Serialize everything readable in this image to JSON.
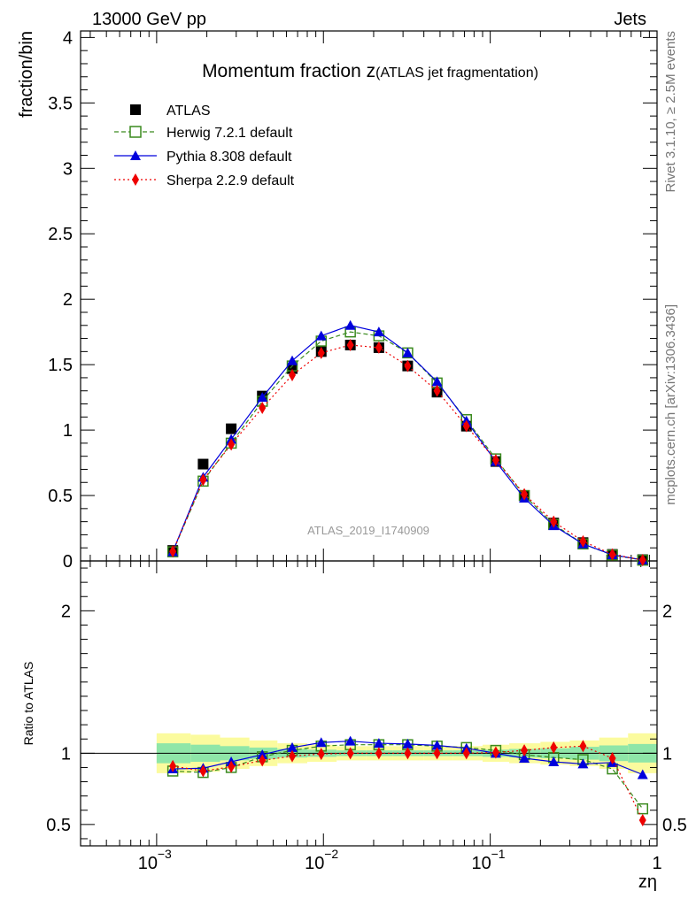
{
  "header": {
    "left": "13000 GeV pp",
    "right": "Jets"
  },
  "side_labels": {
    "rivet": "Rivet 3.1.10, ≥ 2.5M events",
    "mcplots": "mcplots.cern.ch [arXiv:1306.3436]"
  },
  "watermark": "ATLAS_2019_I1740909",
  "chart_data": [
    {
      "type": "scatter",
      "panel": "main",
      "title_main": "Momentum fraction z",
      "title_sub": "(ATLAS jet fragmentation)",
      "ylabel": "fraction/bin",
      "xlabel": "zη",
      "xscale": "log",
      "xlim": [
        0.00035,
        1.0
      ],
      "ylim": [
        0,
        4.05
      ],
      "ytick_labels": [
        "0",
        "0.5",
        "1",
        "1.5",
        "2",
        "2.5",
        "3",
        "3.5",
        "4"
      ],
      "x": [
        0.00125,
        0.0019,
        0.0028,
        0.0043,
        0.0065,
        0.0097,
        0.0145,
        0.0215,
        0.032,
        0.048,
        0.072,
        0.108,
        0.16,
        0.24,
        0.36,
        0.54,
        0.82
      ],
      "legend": "top-left",
      "series": [
        {
          "name": "ATLAS",
          "marker": "square-filled",
          "color": "#000000",
          "dash": "none",
          "values": [
            0.08,
            0.74,
            1.01,
            1.26,
            1.47,
            1.6,
            1.65,
            1.63,
            1.49,
            1.29,
            1.03,
            0.76,
            0.5,
            0.29,
            0.14,
            0.05,
            0.01
          ]
        },
        {
          "name": "Herwig 7.2.1 default",
          "marker": "square-open",
          "color": "#3a8a1e",
          "dash": "5,3",
          "values": [
            0.07,
            0.61,
            0.9,
            1.22,
            1.49,
            1.68,
            1.75,
            1.72,
            1.59,
            1.36,
            1.08,
            0.78,
            0.5,
            0.28,
            0.13,
            0.045,
            0.006
          ]
        },
        {
          "name": "Pythia 8.308 default",
          "marker": "triangle",
          "color": "#0000dd",
          "dash": "none",
          "values": [
            0.07,
            0.64,
            0.93,
            1.25,
            1.53,
            1.72,
            1.8,
            1.75,
            1.59,
            1.37,
            1.07,
            0.76,
            0.48,
            0.27,
            0.13,
            0.047,
            0.008
          ]
        },
        {
          "name": "Sherpa 2.2.9 default",
          "marker": "diamond",
          "color": "#ee0000",
          "dash": "2,3",
          "values": [
            0.073,
            0.62,
            0.89,
            1.17,
            1.42,
            1.59,
            1.65,
            1.63,
            1.49,
            1.3,
            1.03,
            0.77,
            0.51,
            0.3,
            0.15,
            0.05,
            0.007
          ]
        }
      ]
    },
    {
      "type": "scatter",
      "panel": "ratio",
      "ylabel": "Ratio to ATLAS",
      "xlabel": "zη",
      "xscale": "log",
      "xlim": [
        0.00035,
        1.0
      ],
      "ylim": [
        0.35,
        2.35
      ],
      "ytick_labels": [
        "0.5",
        "1",
        "2"
      ],
      "xtick_labels": [
        "10",
        "10",
        "10",
        "1"
      ],
      "xtick_exponents": [
        "−3",
        "−2",
        "−1",
        ""
      ],
      "band_bins": [
        0.001,
        0.0016,
        0.0024,
        0.0036,
        0.0053,
        0.008,
        0.012,
        0.018,
        0.026,
        0.04,
        0.06,
        0.09,
        0.13,
        0.2,
        0.3,
        0.45,
        0.67,
        1.0
      ],
      "band_inner": [
        0.07,
        0.06,
        0.05,
        0.04,
        0.03,
        0.025,
        0.02,
        0.02,
        0.02,
        0.02,
        0.02,
        0.025,
        0.03,
        0.035,
        0.045,
        0.055,
        0.065
      ],
      "band_outer": [
        0.14,
        0.13,
        0.11,
        0.09,
        0.07,
        0.06,
        0.05,
        0.05,
        0.05,
        0.05,
        0.05,
        0.06,
        0.07,
        0.08,
        0.09,
        0.11,
        0.14
      ],
      "x": [
        0.00125,
        0.0019,
        0.0028,
        0.0043,
        0.0065,
        0.0097,
        0.0145,
        0.0215,
        0.032,
        0.048,
        0.072,
        0.108,
        0.16,
        0.24,
        0.36,
        0.54,
        0.82
      ],
      "series": [
        {
          "name": "Herwig 7.2.1 default",
          "marker": "square-open",
          "color": "#3a8a1e",
          "dash": "5,3",
          "values": [
            0.875,
            0.865,
            0.9,
            0.975,
            1.02,
            1.05,
            1.06,
            1.06,
            1.06,
            1.05,
            1.04,
            1.02,
            0.99,
            0.97,
            0.955,
            0.89,
            0.61
          ]
        },
        {
          "name": "Pythia 8.308 default",
          "marker": "triangle",
          "color": "#0000dd",
          "dash": "none",
          "values": [
            0.89,
            0.895,
            0.94,
            0.99,
            1.04,
            1.075,
            1.085,
            1.07,
            1.065,
            1.055,
            1.035,
            1.0,
            0.965,
            0.94,
            0.925,
            0.935,
            0.85
          ]
        },
        {
          "name": "Sherpa 2.2.9 default",
          "marker": "diamond",
          "color": "#ee0000",
          "dash": "2,3",
          "values": [
            0.91,
            0.875,
            0.905,
            0.95,
            0.98,
            0.995,
            1.0,
            1.0,
            1.0,
            1.0,
            1.0,
            1.005,
            1.02,
            1.04,
            1.05,
            0.965,
            0.53
          ]
        }
      ]
    }
  ]
}
